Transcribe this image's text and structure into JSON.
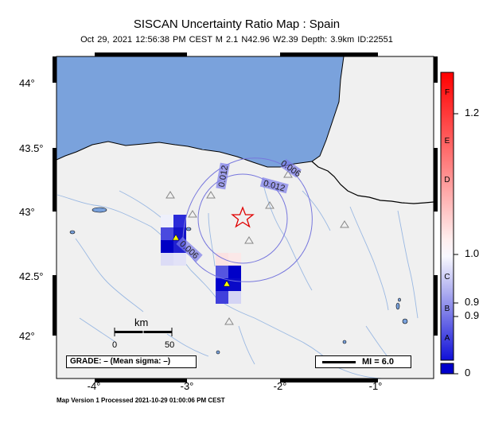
{
  "title": "SISCAN Uncertainty Ratio Map : Spain",
  "subtitle": "Oct 29, 2021 12:56:38 PM CEST   M 2.1   N42.96 W2.39   Depth: 3.9km   ID:22551",
  "footer": "Map Version 1 Processed 2021-10-29 01:00:06 PM CEST",
  "axes": {
    "y_labels": [
      "44°",
      "43.5°",
      "43°",
      "42.5°",
      "42°"
    ],
    "x_labels": [
      "-4°",
      "-3°",
      "-2°",
      "-1°"
    ]
  },
  "colorbar": {
    "letters": [
      "F",
      "E",
      "D",
      "C",
      "B",
      "A"
    ],
    "values": [
      "1.2",
      "1.0",
      "0.9",
      "0.9",
      "0"
    ],
    "top_color": "#ff0000",
    "bottom_color": "#0000cc"
  },
  "contour_labels": [
    "0.012",
    "0.012",
    "0.006",
    "0.006"
  ],
  "scale_bar": {
    "unit": "km",
    "start": "0",
    "end": "50"
  },
  "grade_box": "GRADE: – (Mean sigma: –)",
  "mi_legend": "MI = 6.0",
  "epicenter": {
    "lat": 42.96,
    "lon": -2.39,
    "marker": "red-star"
  },
  "colors": {
    "sea": "#7aa2dc",
    "land": "#f0f0f0",
    "rivers": "#9ab8e2",
    "contour": "#7777dd"
  }
}
